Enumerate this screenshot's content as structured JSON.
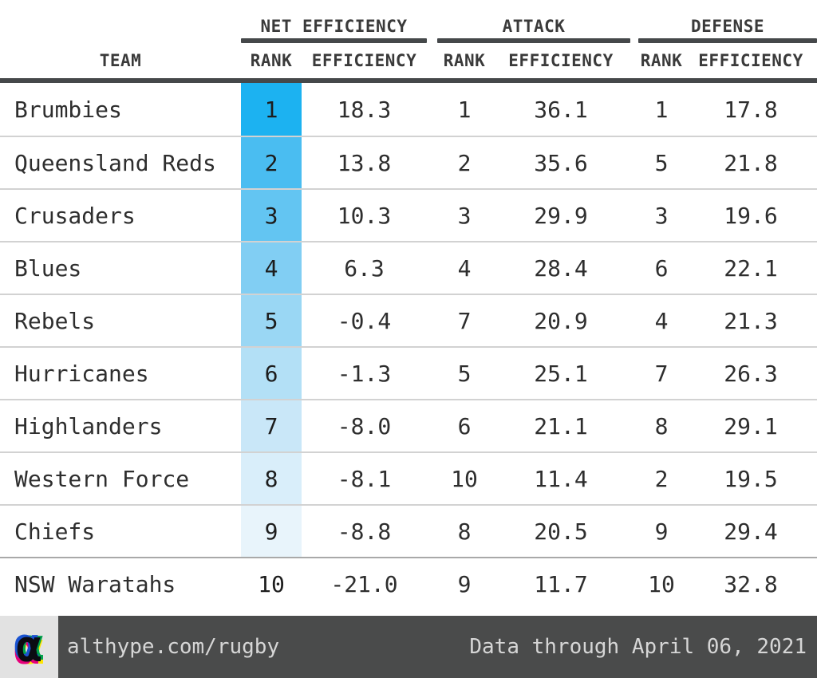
{
  "chart_data": {
    "type": "table",
    "title": "",
    "group_headers": [
      "NET EFFICIENCY",
      "ATTACK",
      "DEFENSE"
    ],
    "columns": [
      "TEAM",
      "RANK",
      "EFFICIENCY",
      "RANK",
      "EFFICIENCY",
      "RANK",
      "EFFICIENCY"
    ],
    "rows": [
      {
        "team": "Brumbies",
        "net_rank": "1",
        "net_efficiency": "18.3",
        "attack_rank": "1",
        "attack_efficiency": "36.1",
        "defense_rank": "1",
        "defense_efficiency": "17.8",
        "rank_cell_color": "#1cb2f1"
      },
      {
        "team": "Queensland Reds",
        "net_rank": "2",
        "net_efficiency": "13.8",
        "attack_rank": "2",
        "attack_efficiency": "35.6",
        "defense_rank": "5",
        "defense_efficiency": "21.8",
        "rank_cell_color": "#4abdf1"
      },
      {
        "team": "Crusaders",
        "net_rank": "3",
        "net_efficiency": "10.3",
        "attack_rank": "3",
        "attack_efficiency": "29.9",
        "defense_rank": "3",
        "defense_efficiency": "19.6",
        "rank_cell_color": "#63c5f2"
      },
      {
        "team": "Blues",
        "net_rank": "4",
        "net_efficiency": "6.3",
        "attack_rank": "4",
        "attack_efficiency": "28.4",
        "defense_rank": "6",
        "defense_efficiency": "22.1",
        "rank_cell_color": "#81cef3"
      },
      {
        "team": "Rebels",
        "net_rank": "5",
        "net_efficiency": "-0.4",
        "attack_rank": "7",
        "attack_efficiency": "20.9",
        "defense_rank": "4",
        "defense_efficiency": "21.3",
        "rank_cell_color": "#9ad7f4"
      },
      {
        "team": "Hurricanes",
        "net_rank": "6",
        "net_efficiency": "-1.3",
        "attack_rank": "5",
        "attack_efficiency": "25.1",
        "defense_rank": "7",
        "defense_efficiency": "26.3",
        "rank_cell_color": "#b3e0f6"
      },
      {
        "team": "Highlanders",
        "net_rank": "7",
        "net_efficiency": "-8.0",
        "attack_rank": "6",
        "attack_efficiency": "21.1",
        "defense_rank": "8",
        "defense_efficiency": "29.1",
        "rank_cell_color": "#c9e7f8"
      },
      {
        "team": "Western Force",
        "net_rank": "8",
        "net_efficiency": "-8.1",
        "attack_rank": "10",
        "attack_efficiency": "11.4",
        "defense_rank": "2",
        "defense_efficiency": "19.5",
        "rank_cell_color": "#d9eefa"
      },
      {
        "team": "Chiefs",
        "net_rank": "9",
        "net_efficiency": "-8.8",
        "attack_rank": "8",
        "attack_efficiency": "20.5",
        "defense_rank": "9",
        "defense_efficiency": "29.4",
        "rank_cell_color": "#e8f4fb"
      },
      {
        "team": "NSW Waratahs",
        "net_rank": "10",
        "net_efficiency": "-21.0",
        "attack_rank": "9",
        "attack_efficiency": "11.7",
        "defense_rank": "10",
        "defense_efficiency": "32.8",
        "rank_cell_color": ""
      }
    ],
    "layout_hints": {
      "rank_column_heatmap": "blue scale, darkest = rank 1, uncolored = rank 10",
      "grid": "horizontal separators only, thick rule under header"
    }
  },
  "table": {
    "group_net_label": "NET EFFICIENCY",
    "group_attack_label": "ATTACK",
    "group_defense_label": "DEFENSE",
    "col_team_label": "TEAM",
    "col_rank_label": "RANK",
    "col_efficiency_label": "EFFICIENCY"
  },
  "footer": {
    "logo_glyph": "α",
    "site_url": "althype.com/rugby",
    "data_note": "Data through April 06, 2021"
  },
  "colors": {
    "header_rule": "#45484a",
    "row_separator": "#d2d2d2",
    "last_row_separator": "#a9a9a9",
    "footer_bar": "#4a4b4b",
    "footer_text": "#d6d6d6",
    "logo_box": "#e2e2e2",
    "rank_scale": [
      "#1cb2f1",
      "#4abdf1",
      "#63c5f2",
      "#81cef3",
      "#9ad7f4",
      "#b3e0f6",
      "#c9e7f8",
      "#d9eefa",
      "#e8f4fb",
      ""
    ]
  }
}
